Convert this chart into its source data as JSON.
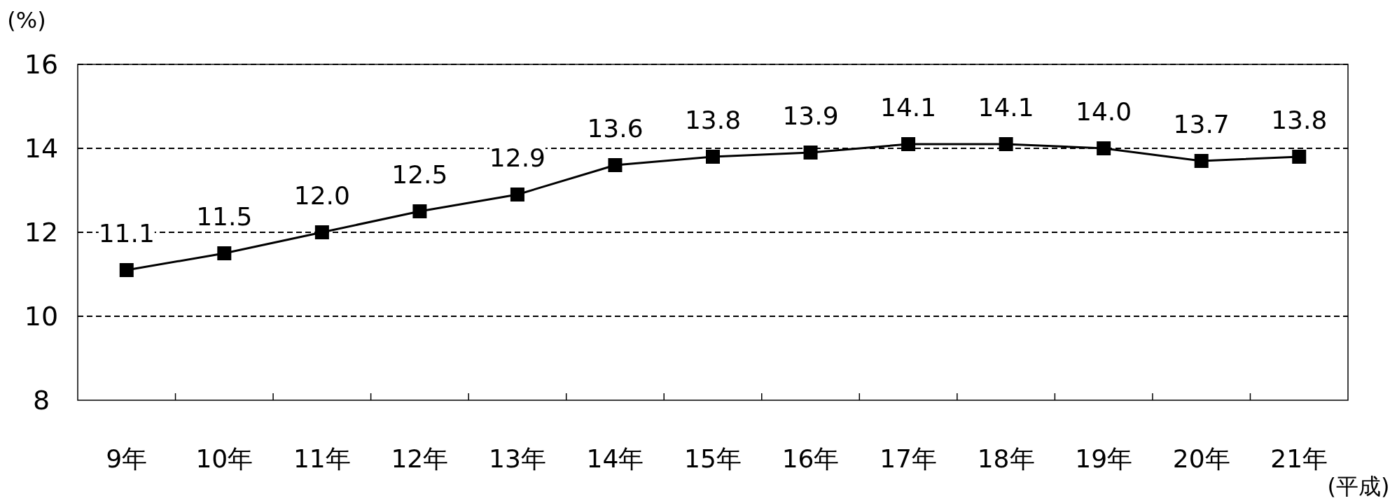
{
  "chart_data": {
    "type": "line",
    "xlabel": "(平成)",
    "ylabel": "(%)",
    "categories": [
      "9年",
      "10年",
      "11年",
      "12年",
      "13年",
      "14年",
      "15年",
      "16年",
      "17年",
      "18年",
      "19年",
      "20年",
      "21年"
    ],
    "series": [
      {
        "color": "#000000",
        "values": [
          11.1,
          11.5,
          12.0,
          12.5,
          12.9,
          13.6,
          13.8,
          13.9,
          14.1,
          14.1,
          14.0,
          13.7,
          13.8
        ],
        "value_labels": [
          "11.1",
          "11.5",
          "12.0",
          "12.5",
          "12.9",
          "13.6",
          "13.8",
          "13.9",
          "14.1",
          "14.1",
          "14.0",
          "13.7",
          "13.8"
        ]
      }
    ],
    "ylim": [
      8,
      16
    ],
    "yticks": [
      8,
      10,
      12,
      14,
      16
    ],
    "grid": "y",
    "marker": "square",
    "line_style": "solid"
  }
}
